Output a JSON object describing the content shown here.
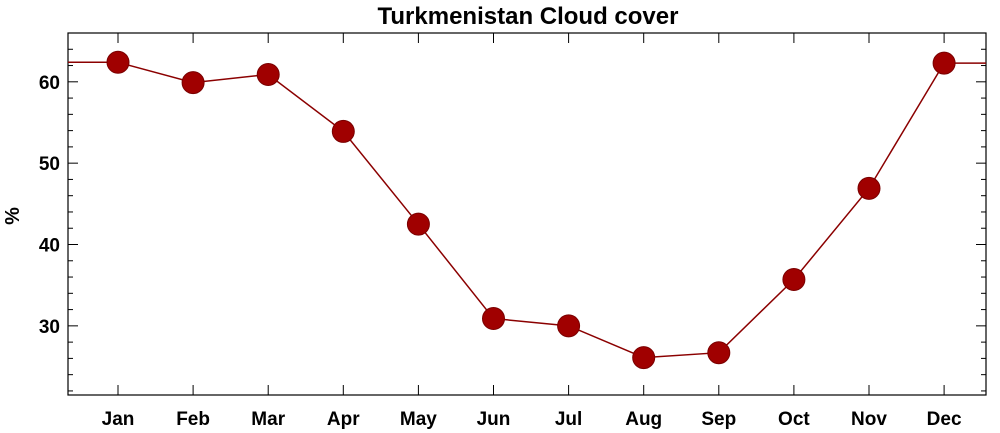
{
  "chart_data": {
    "type": "line",
    "title": "Turkmenistan Cloud cover",
    "xlabel": "",
    "ylabel": "%",
    "categories": [
      "Jan",
      "Feb",
      "Mar",
      "Apr",
      "May",
      "Jun",
      "Jul",
      "Aug",
      "Sep",
      "Oct",
      "Nov",
      "Dec"
    ],
    "series": [
      {
        "values": [
          62.4,
          59.9,
          60.9,
          53.9,
          42.5,
          30.9,
          30.0,
          26.1,
          26.7,
          35.7,
          46.9,
          62.3
        ]
      }
    ],
    "ylim": [
      21.5,
      66.0
    ],
    "yticks": [
      30,
      40,
      50,
      60
    ],
    "yticks_minor_step": 2,
    "grid": false,
    "legend": "none",
    "colors": {
      "line": "#8b0000",
      "marker": "#a00000",
      "axes": "#000000"
    }
  }
}
